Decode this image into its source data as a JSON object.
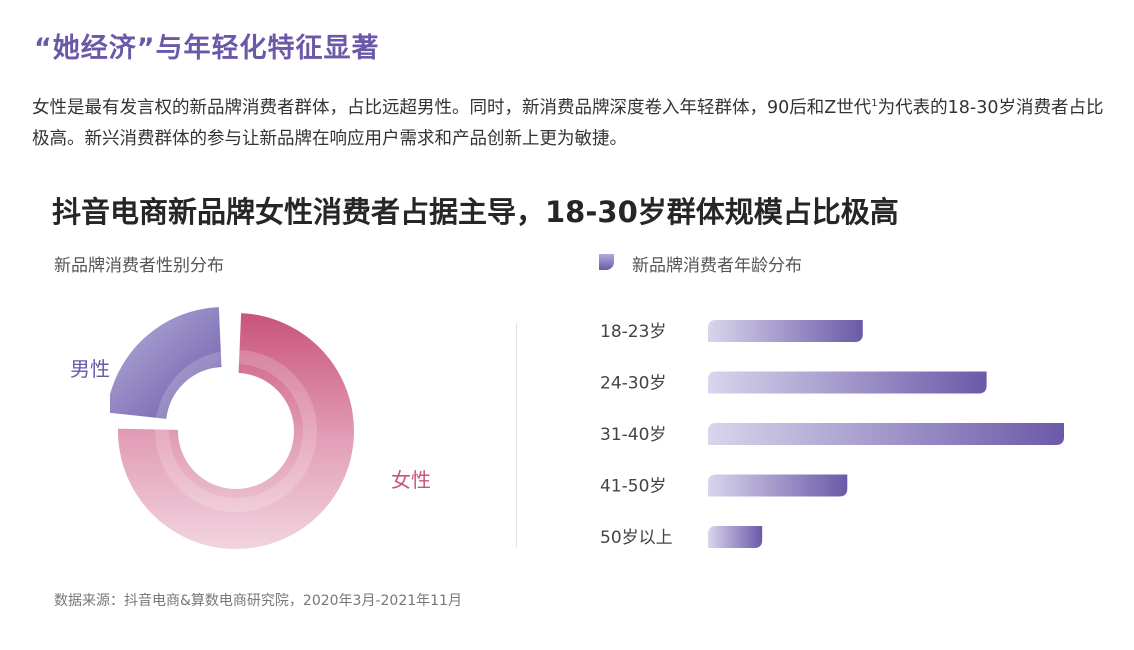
{
  "header": {
    "section_title": "“她经济”与年轻化特征显著",
    "intro_part1": "女性是最有发言权的新品牌消费者群体，占比远超男性。同时，新消费品牌深度卷入年轻群体，90后和Z世代",
    "intro_footnote": "1",
    "intro_part2": "为代表的18-30岁消费者占比极高。新兴消费群体的参与让新品牌在响应用户需求和产品创新上更为敏捷。"
  },
  "chart_title": "抖音电商新品牌女性消费者占据主导，18-30岁群体规模占比极高",
  "source": "数据来源：抖音电商&算数电商研究院，2020年3月-2021年11月",
  "colors": {
    "accent_purple": "#6b59a8",
    "accent_pink": "#c9547b",
    "bar_start": "#d9d5ec",
    "bar_end": "#6b59a8"
  },
  "chart_data": [
    {
      "type": "pie",
      "variant": "donut",
      "title": "新品牌消费者性别分布",
      "categories": [
        "女性",
        "男性"
      ],
      "values": [
        76,
        24
      ],
      "colors": [
        "#d66c92",
        "#8a7fc0"
      ]
    },
    {
      "type": "bar",
      "orientation": "horizontal",
      "title": "新品牌消费者年龄分布",
      "categories": [
        "18-23岁",
        "24-30岁",
        "31-40岁",
        "41-50岁",
        "50岁以上"
      ],
      "values": [
        20,
        36,
        46,
        18,
        7
      ]
    }
  ]
}
